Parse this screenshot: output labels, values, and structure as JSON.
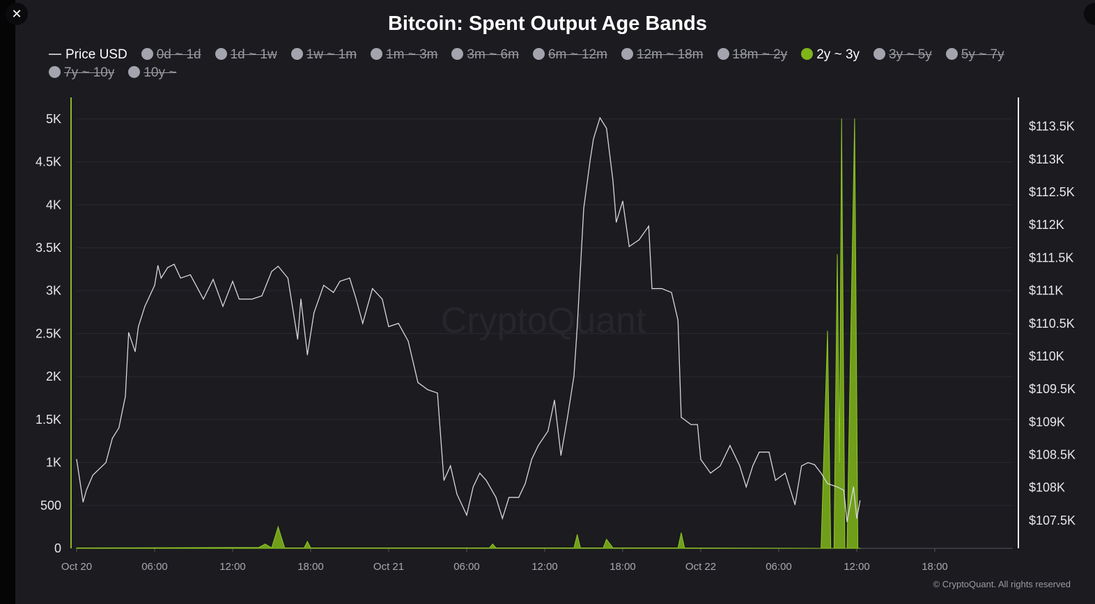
{
  "close_icon": "close-icon",
  "chart_data": {
    "type": "line",
    "title": "Bitcoin: Spent Output Age Bands",
    "watermark": "CryptoQuant",
    "copyright": "© CryptoQuant. All rights reserved",
    "grid": true,
    "legend_placement": "top",
    "legend": [
      {
        "label": "Price USD",
        "kind": "line",
        "active": true
      },
      {
        "label": "0d ~ 1d",
        "active": false
      },
      {
        "label": "1d ~ 1w",
        "active": false
      },
      {
        "label": "1w ~ 1m",
        "active": false
      },
      {
        "label": "1m ~ 3m",
        "active": false
      },
      {
        "label": "3m ~ 6m",
        "active": false
      },
      {
        "label": "6m ~ 12m",
        "active": false
      },
      {
        "label": "12m ~ 18m",
        "active": false
      },
      {
        "label": "18m ~ 2y",
        "active": false
      },
      {
        "label": "2y ~ 3y",
        "active": true,
        "color": "#7fb51a"
      },
      {
        "label": "3y ~ 5y",
        "active": false
      },
      {
        "label": "5y ~ 7y",
        "active": false
      },
      {
        "label": "7y ~ 10y",
        "active": false
      },
      {
        "label": "10y ~",
        "active": false
      }
    ],
    "x_ticks": [
      "Oct 20",
      "06:00",
      "12:00",
      "18:00",
      "Oct 21",
      "06:00",
      "12:00",
      "18:00",
      "Oct 22",
      "06:00",
      "12:00",
      "18:00"
    ],
    "xlim": [
      "Oct 20 00:00",
      "Oct 23 00:00"
    ],
    "y_left": {
      "ticks": [
        "0",
        "500",
        "1K",
        "1.5K",
        "2K",
        "2.5K",
        "3K",
        "3.5K",
        "4K",
        "4.5K",
        "5K"
      ],
      "ylim": [
        0,
        5250
      ]
    },
    "y_right": {
      "ticks": [
        "$107.5K",
        "$108K",
        "$108.5K",
        "$109K",
        "$109.5K",
        "$110K",
        "$110.5K",
        "$111K",
        "$111.5K",
        "$112K",
        "$112.5K",
        "$113K",
        "$113.5K"
      ],
      "ylim": [
        107065,
        113930
      ]
    },
    "colors": {
      "price": "#d8d8dc",
      "band": "#7fb51a",
      "left_axis": "#8db82a",
      "grid": "#2b2b31"
    },
    "series": [
      {
        "name": "Price USD",
        "axis": "right",
        "color": "#d8d8dc",
        "points": [
          [
            "Oct 20 00:00",
            108420
          ],
          [
            "Oct 20 00:30",
            107770
          ],
          [
            "Oct 20 00:45",
            107950
          ],
          [
            "Oct 20 01:15",
            108180
          ],
          [
            "Oct 20 02:15",
            108370
          ],
          [
            "Oct 20 02:45",
            108740
          ],
          [
            "Oct 20 03:15",
            108900
          ],
          [
            "Oct 20 03:45",
            109380
          ],
          [
            "Oct 20 04:00",
            110350
          ],
          [
            "Oct 20 04:30",
            110060
          ],
          [
            "Oct 20 04:45",
            110440
          ],
          [
            "Oct 20 05:15",
            110750
          ],
          [
            "Oct 20 06:00",
            111070
          ],
          [
            "Oct 20 06:15",
            111370
          ],
          [
            "Oct 20 06:30",
            111180
          ],
          [
            "Oct 20 07:00",
            111340
          ],
          [
            "Oct 20 07:30",
            111390
          ],
          [
            "Oct 20 08:00",
            111180
          ],
          [
            "Oct 20 08:45",
            111230
          ],
          [
            "Oct 20 09:45",
            110860
          ],
          [
            "Oct 20 10:30",
            111160
          ],
          [
            "Oct 20 11:15",
            110750
          ],
          [
            "Oct 20 12:00",
            111130
          ],
          [
            "Oct 20 12:30",
            110860
          ],
          [
            "Oct 20 13:30",
            110860
          ],
          [
            "Oct 20 14:15",
            110910
          ],
          [
            "Oct 20 15:00",
            111280
          ],
          [
            "Oct 20 15:30",
            111360
          ],
          [
            "Oct 20 16:15",
            111180
          ],
          [
            "Oct 20 17:00",
            110250
          ],
          [
            "Oct 20 17:15",
            110860
          ],
          [
            "Oct 20 17:45",
            110010
          ],
          [
            "Oct 20 18:15",
            110650
          ],
          [
            "Oct 20 19:00",
            111070
          ],
          [
            "Oct 20 19:45",
            110960
          ],
          [
            "Oct 20 20:15",
            111130
          ],
          [
            "Oct 20 21:00",
            111180
          ],
          [
            "Oct 20 21:30",
            110860
          ],
          [
            "Oct 20 22:00",
            110490
          ],
          [
            "Oct 20 22:45",
            111020
          ],
          [
            "Oct 20 23:30",
            110860
          ],
          [
            "Oct 21 00:00",
            110440
          ],
          [
            "Oct 21 00:45",
            110490
          ],
          [
            "Oct 21 01:30",
            110220
          ],
          [
            "Oct 21 02:15",
            109590
          ],
          [
            "Oct 21 03:00",
            109480
          ],
          [
            "Oct 21 03:45",
            109430
          ],
          [
            "Oct 21 04:15",
            108100
          ],
          [
            "Oct 21 04:45",
            108320
          ],
          [
            "Oct 21 05:15",
            107890
          ],
          [
            "Oct 21 06:00",
            107570
          ],
          [
            "Oct 21 06:30",
            108000
          ],
          [
            "Oct 21 07:00",
            108210
          ],
          [
            "Oct 21 07:30",
            108100
          ],
          [
            "Oct 21 08:15",
            107840
          ],
          [
            "Oct 21 08:45",
            107520
          ],
          [
            "Oct 21 09:15",
            107840
          ],
          [
            "Oct 21 10:00",
            107840
          ],
          [
            "Oct 21 10:30",
            108050
          ],
          [
            "Oct 21 11:00",
            108420
          ],
          [
            "Oct 21 11:30",
            108630
          ],
          [
            "Oct 21 12:15",
            108850
          ],
          [
            "Oct 21 12:45",
            109320
          ],
          [
            "Oct 21 13:15",
            108480
          ],
          [
            "Oct 21 13:45",
            109060
          ],
          [
            "Oct 21 14:15",
            109690
          ],
          [
            "Oct 21 14:30",
            110440
          ],
          [
            "Oct 21 15:00",
            112240
          ],
          [
            "Oct 21 15:30",
            112980
          ],
          [
            "Oct 21 15:45",
            113300
          ],
          [
            "Oct 21 16:15",
            113620
          ],
          [
            "Oct 21 16:45",
            113460
          ],
          [
            "Oct 21 17:15",
            112660
          ],
          [
            "Oct 21 17:30",
            112030
          ],
          [
            "Oct 21 18:00",
            112350
          ],
          [
            "Oct 21 18:30",
            111660
          ],
          [
            "Oct 21 19:15",
            111760
          ],
          [
            "Oct 21 20:00",
            111970
          ],
          [
            "Oct 21 20:15",
            111020
          ],
          [
            "Oct 21 21:00",
            111020
          ],
          [
            "Oct 21 21:45",
            110960
          ],
          [
            "Oct 21 22:15",
            110540
          ],
          [
            "Oct 21 22:30",
            109060
          ],
          [
            "Oct 21 23:15",
            108950
          ],
          [
            "Oct 21 23:45",
            108950
          ],
          [
            "Oct 22 00:00",
            108420
          ],
          [
            "Oct 22 00:45",
            108210
          ],
          [
            "Oct 22 01:30",
            108320
          ],
          [
            "Oct 22 02:15",
            108630
          ],
          [
            "Oct 22 03:00",
            108320
          ],
          [
            "Oct 22 03:30",
            108000
          ],
          [
            "Oct 22 04:00",
            108320
          ],
          [
            "Oct 22 04:30",
            108530
          ],
          [
            "Oct 22 05:15",
            108530
          ],
          [
            "Oct 22 05:45",
            108100
          ],
          [
            "Oct 22 06:30",
            108210
          ],
          [
            "Oct 22 07:15",
            107730
          ],
          [
            "Oct 22 07:45",
            108320
          ],
          [
            "Oct 22 08:15",
            108370
          ],
          [
            "Oct 22 08:45",
            108340
          ],
          [
            "Oct 22 09:15",
            108210
          ],
          [
            "Oct 22 09:45",
            108050
          ],
          [
            "Oct 22 10:30",
            108000
          ],
          [
            "Oct 22 11:00",
            107950
          ],
          [
            "Oct 22 11:15",
            107470
          ],
          [
            "Oct 22 11:45",
            108000
          ],
          [
            "Oct 22 12:00",
            107520
          ],
          [
            "Oct 22 12:15",
            107790
          ]
        ]
      },
      {
        "name": "2y ~ 3y",
        "axis": "left",
        "color": "#7fb51a",
        "points": [
          [
            "Oct 20 00:00",
            5
          ],
          [
            "Oct 20 14:00",
            10
          ],
          [
            "Oct 20 14:30",
            50
          ],
          [
            "Oct 20 15:00",
            5
          ],
          [
            "Oct 20 15:30",
            250
          ],
          [
            "Oct 20 16:00",
            5
          ],
          [
            "Oct 20 17:30",
            5
          ],
          [
            "Oct 20 17:45",
            80
          ],
          [
            "Oct 20 18:00",
            5
          ],
          [
            "Oct 21 07:45",
            5
          ],
          [
            "Oct 21 08:00",
            50
          ],
          [
            "Oct 21 08:15",
            5
          ],
          [
            "Oct 21 14:15",
            5
          ],
          [
            "Oct 21 14:30",
            160
          ],
          [
            "Oct 21 14:45",
            5
          ],
          [
            "Oct 21 16:30",
            5
          ],
          [
            "Oct 21 16:45",
            105
          ],
          [
            "Oct 21 17:15",
            5
          ],
          [
            "Oct 21 22:15",
            5
          ],
          [
            "Oct 21 22:30",
            180
          ],
          [
            "Oct 21 22:45",
            5
          ],
          [
            "Oct 22 09:15",
            0
          ],
          [
            "Oct 22 09:45",
            2530
          ],
          [
            "Oct 22 10:00",
            0
          ],
          [
            "Oct 22 10:15",
            0
          ],
          [
            "Oct 22 10:30",
            3420
          ],
          [
            "Oct 22 10:40",
            1000
          ],
          [
            "Oct 22 10:50",
            5000
          ],
          [
            "Oct 22 11:05",
            0
          ],
          [
            "Oct 22 11:15",
            0
          ],
          [
            "Oct 22 11:50",
            5000
          ],
          [
            "Oct 22 12:05",
            0
          ],
          [
            "Oct 22 12:15",
            0
          ]
        ]
      }
    ]
  }
}
